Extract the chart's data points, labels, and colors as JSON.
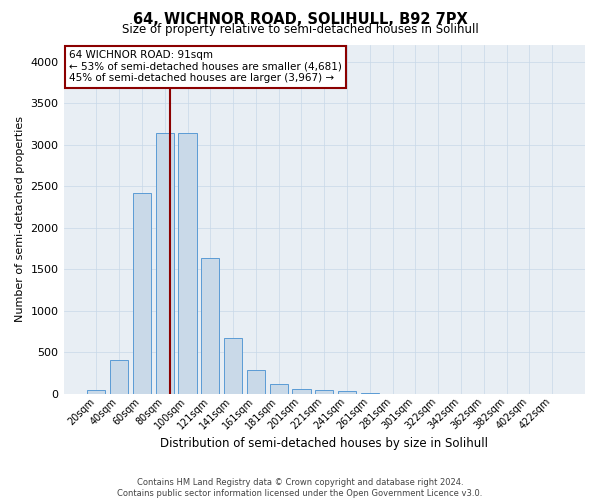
{
  "title1": "64, WICHNOR ROAD, SOLIHULL, B92 7PX",
  "title2": "Size of property relative to semi-detached houses in Solihull",
  "xlabel": "Distribution of semi-detached houses by size in Solihull",
  "ylabel": "Number of semi-detached properties",
  "footnote1": "Contains HM Land Registry data © Crown copyright and database right 2024.",
  "footnote2": "Contains public sector information licensed under the Open Government Licence v3.0.",
  "bar_labels": [
    "20sqm",
    "40sqm",
    "60sqm",
    "80sqm",
    "100sqm",
    "121sqm",
    "141sqm",
    "161sqm",
    "181sqm",
    "201sqm",
    "221sqm",
    "241sqm",
    "261sqm",
    "281sqm",
    "301sqm",
    "322sqm",
    "342sqm",
    "362sqm",
    "382sqm",
    "402sqm",
    "422sqm"
  ],
  "bar_values": [
    40,
    410,
    2420,
    3140,
    3140,
    1630,
    670,
    290,
    120,
    60,
    50,
    30,
    5,
    3,
    0,
    0,
    0,
    0,
    0,
    0,
    0
  ],
  "bar_color": "#c9d9e8",
  "bar_edgecolor": "#5b9bd5",
  "vline_x": 3.25,
  "vline_color": "#8b0000",
  "annotation_text": "64 WICHNOR ROAD: 91sqm\n← 53% of semi-detached houses are smaller (4,681)\n45% of semi-detached houses are larger (3,967) →",
  "annotation_box_edgecolor": "#8b0000",
  "ylim": [
    0,
    4200
  ],
  "yticks": [
    0,
    500,
    1000,
    1500,
    2000,
    2500,
    3000,
    3500,
    4000
  ],
  "grid_color": "#c8d8e8",
  "background_color": "#e8eef4"
}
